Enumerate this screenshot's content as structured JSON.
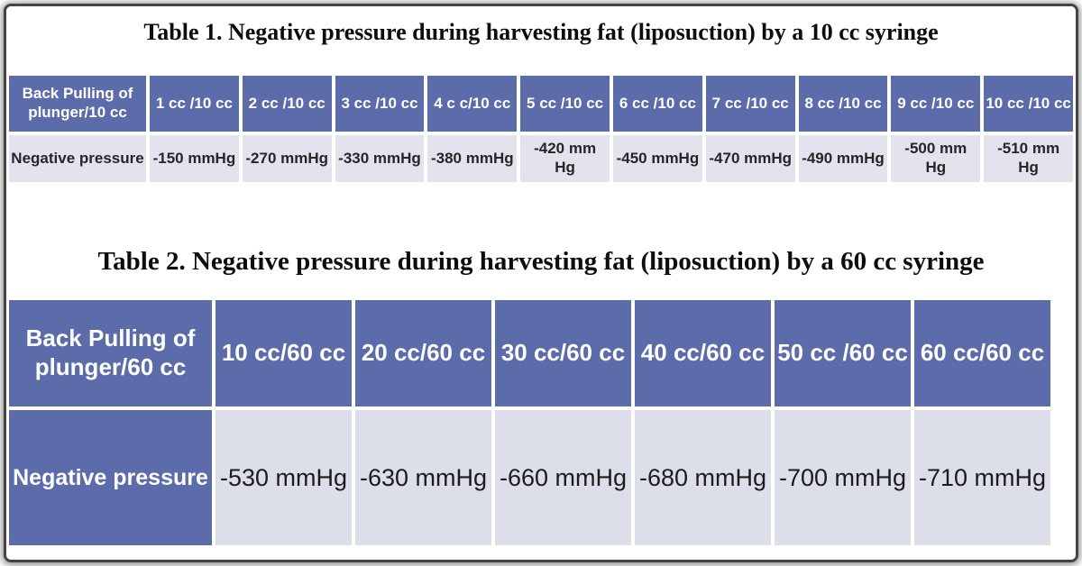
{
  "colors": {
    "frame_border": "#454545",
    "header_blue": "#5c6baa",
    "table1_cell": "#e2e3ed",
    "table2_cell": "#dcdee9",
    "dark_text": "#262626",
    "white_text": "#ffffff"
  },
  "table1": {
    "title": "Table 1. Negative pressure during harvesting fat (liposuction) by a 10 cc syringe",
    "corner_label": "Back Pulling of plunger/10 cc",
    "columns": [
      "1 cc /10 cc",
      "2 cc /10 cc",
      "3 cc /10 cc",
      "4 c c/10 cc",
      "5 cc /10 cc",
      "6 cc /10 cc",
      "7 cc /10 cc",
      "8 cc /10 cc",
      "9 cc /10 cc",
      "10 cc /10 cc"
    ],
    "row_label": "Negative pressure",
    "values": [
      "-150 mmHg",
      "-270 mmHg",
      "-330 mmHg",
      "-380 mmHg",
      "-420 mm Hg",
      "-450 mmHg",
      "-470 mmHg",
      "-490 mmHg",
      "-500 mm Hg",
      "-510 mm Hg"
    ]
  },
  "table2": {
    "title": "Table 2. Negative pressure during harvesting fat (liposuction) by a 60 cc syringe",
    "corner_label": "Back Pulling of plunger/60 cc",
    "columns": [
      "10 cc/60 cc",
      "20 cc/60 cc",
      "30 cc/60 cc",
      "40 cc/60 cc",
      "50 cc /60 cc",
      "60 cc/60 cc"
    ],
    "row_label": "Negative pressure",
    "values": [
      "-530 mmHg",
      "-630 mmHg",
      "-660 mmHg",
      "-680 mmHg",
      "-700 mmHg",
      "-710 mmHg"
    ]
  },
  "chart_data": [
    {
      "type": "table",
      "title": "Table 1. Negative pressure during harvesting fat (liposuction) by a 10 cc syringe",
      "categories": [
        "1 cc /10 cc",
        "2 cc /10 cc",
        "3 cc /10 cc",
        "4 c c/10 cc",
        "5 cc /10 cc",
        "6 cc /10 cc",
        "7 cc /10 cc",
        "8 cc /10 cc",
        "9 cc /10 cc",
        "10 cc /10 cc"
      ],
      "series": [
        {
          "name": "Negative pressure (mmHg)",
          "values": [
            -150,
            -270,
            -330,
            -380,
            -420,
            -450,
            -470,
            -490,
            -500,
            -510
          ]
        }
      ]
    },
    {
      "type": "table",
      "title": "Table 2. Negative pressure during harvesting fat (liposuction) by a 60 cc syringe",
      "categories": [
        "10 cc/60 cc",
        "20 cc/60 cc",
        "30 cc/60 cc",
        "40 cc/60 cc",
        "50 cc /60 cc",
        "60 cc/60 cc"
      ],
      "series": [
        {
          "name": "Negative pressure (mmHg)",
          "values": [
            -530,
            -630,
            -660,
            -680,
            -700,
            -710
          ]
        }
      ]
    }
  ]
}
